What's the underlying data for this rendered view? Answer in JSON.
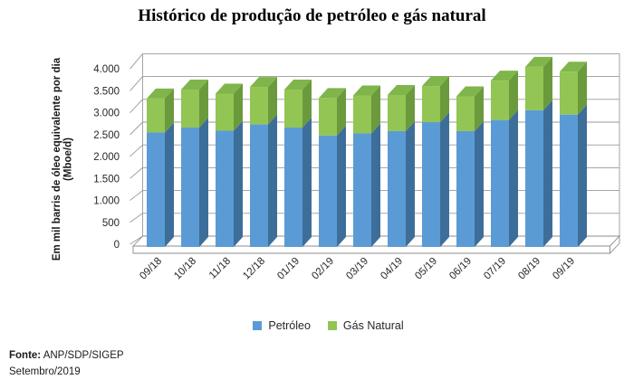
{
  "page": {
    "background": "#FFFFFF"
  },
  "chart": {
    "title": "Histórico de produção de petróleo e gás natural",
    "y_axis": {
      "title_line1": "Em mil barris de óleo equivalente por dia",
      "title_line2": "(Mboe/d)",
      "tick_labels": [
        "0",
        "500",
        "1.000",
        "1.500",
        "2.000",
        "2.500",
        "3.000",
        "3.500",
        "4.000"
      ]
    },
    "legend": {
      "items": [
        {
          "label": "Petróleo",
          "color": "#5B9BD5"
        },
        {
          "label": "Gás Natural",
          "color": "#92C554"
        }
      ]
    },
    "footer": {
      "source_label": "Fonte:",
      "source_value": " ANP/SDP/SIGEP",
      "date": "Setembro/2019"
    }
  },
  "chart_data": {
    "type": "bar",
    "stacked": true,
    "style": "3d",
    "title": "Histórico de produção de petróleo e gás natural",
    "categories": [
      "09/18",
      "10/18",
      "11/18",
      "12/18",
      "01/19",
      "02/19",
      "03/19",
      "04/19",
      "05/19",
      "06/19",
      "07/19",
      "08/19",
      "09/19"
    ],
    "series": [
      {
        "name": "Petróleo",
        "color": "#5B9BD5",
        "side_color": "#3D6E99",
        "values": [
          2430,
          2540,
          2470,
          2610,
          2540,
          2360,
          2410,
          2460,
          2660,
          2460,
          2710,
          2930,
          2830
        ]
      },
      {
        "name": "Gás Natural",
        "color": "#92C554",
        "side_color": "#6B9A3C",
        "top_color": "#7FB54A",
        "values": [
          760,
          850,
          830,
          840,
          850,
          840,
          850,
          810,
          810,
          780,
          880,
          970,
          960
        ]
      }
    ],
    "totals": [
      3190,
      3390,
      3300,
      3450,
      3390,
      3200,
      3260,
      3270,
      3470,
      3240,
      3590,
      3900,
      3790
    ],
    "xlabel": "",
    "ylabel": "Em mil barris de óleo equivalente por dia (Mboe/d)",
    "ylim": [
      0,
      4000
    ],
    "ytick_step": 500,
    "grid": true,
    "legend_position": "bottom"
  }
}
